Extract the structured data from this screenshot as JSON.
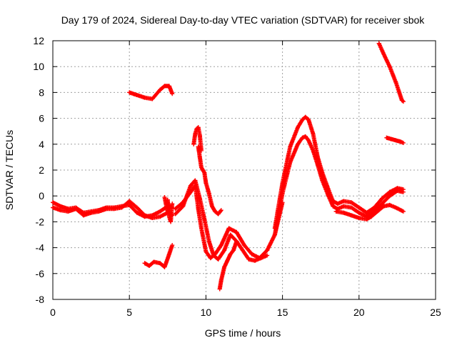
{
  "chart_data": {
    "type": "scatter",
    "title": "Day 179 of 2024, Sidereal Day-to-day VTEC variation (SDTVAR) for receiver sbok",
    "xlabel": "GPS time / hours",
    "ylabel": "SDTVAR / TECUs",
    "xlim": [
      0,
      25
    ],
    "ylim": [
      -8,
      12
    ],
    "xticks": [
      0,
      5,
      10,
      15,
      20,
      25
    ],
    "yticks": [
      -8,
      -6,
      -4,
      -2,
      0,
      2,
      4,
      6,
      8,
      10,
      12
    ],
    "grid": true,
    "marker": "+",
    "series_color": "#ff0000",
    "series": [
      {
        "name": "track-main-1",
        "x": [
          0.0,
          0.5,
          1.0,
          1.5,
          2.0,
          2.5,
          3.0,
          3.5,
          4.0,
          4.5,
          5.0,
          5.5,
          6.0,
          6.5,
          7.0,
          7.5,
          7.8
        ],
        "y": [
          -0.5,
          -0.8,
          -1.0,
          -0.9,
          -1.3,
          -1.2,
          -1.1,
          -0.9,
          -0.9,
          -0.8,
          -0.7,
          -1.3,
          -1.6,
          -1.5,
          -1.2,
          -0.8,
          -0.9
        ]
      },
      {
        "name": "track-main-2",
        "x": [
          0.0,
          0.5,
          1.0,
          1.5,
          2.0,
          2.5,
          3.0,
          3.5,
          4.0,
          4.5,
          5.0,
          5.5,
          6.0,
          6.5,
          7.0,
          7.5,
          7.8
        ],
        "y": [
          -0.9,
          -1.1,
          -1.2,
          -1.0,
          -1.5,
          -1.3,
          -1.2,
          -1.0,
          -1.0,
          -0.9,
          -0.4,
          -0.9,
          -1.5,
          -1.7,
          -1.6,
          -1.3,
          -1.5
        ]
      },
      {
        "name": "track-upper-left",
        "x": [
          5.0,
          5.5,
          6.0,
          6.5,
          7.0,
          7.3,
          7.6,
          7.8
        ],
        "y": [
          8.0,
          7.8,
          7.6,
          7.5,
          8.2,
          8.5,
          8.5,
          7.9
        ]
      },
      {
        "name": "track-lower-left",
        "x": [
          6.0,
          6.3,
          6.6,
          7.0,
          7.3,
          7.6,
          7.8
        ],
        "y": [
          -5.2,
          -5.4,
          -5.1,
          -5.2,
          -5.5,
          -4.5,
          -3.8
        ]
      },
      {
        "name": "track-left-vertical",
        "x": [
          7.3,
          7.4,
          7.5,
          7.5,
          7.6,
          7.7,
          7.8
        ],
        "y": [
          -0.1,
          -0.7,
          -1.2,
          -0.3,
          -1.6,
          -2.0,
          -0.6
        ]
      },
      {
        "name": "track-mid-1",
        "x": [
          8.0,
          8.5,
          9.0,
          9.3,
          9.5,
          9.7,
          10.0,
          10.3,
          10.6,
          11.0,
          11.5,
          12.0,
          12.5,
          13.0,
          13.5,
          14.0,
          14.5,
          15.0
        ],
        "y": [
          -1.0,
          -0.5,
          0.3,
          0.8,
          -1.0,
          -2.5,
          -4.3,
          -4.8,
          -4.5,
          -3.8,
          -2.5,
          -2.8,
          -3.8,
          -4.5,
          -4.8,
          -4.2,
          -3.0,
          -0.5
        ]
      },
      {
        "name": "track-mid-2",
        "x": [
          8.0,
          8.5,
          9.0,
          9.3,
          9.6,
          9.9,
          10.2,
          10.5,
          10.8,
          11.2,
          11.6,
          12.0,
          12.4,
          12.8,
          13.2,
          13.6,
          14.0
        ],
        "y": [
          -1.4,
          -0.8,
          0.8,
          1.2,
          -0.2,
          -1.8,
          -3.5,
          -4.6,
          -4.9,
          -4.2,
          -3.0,
          -3.5,
          -4.2,
          -4.9,
          -5.0,
          -4.8,
          -4.6
        ]
      },
      {
        "name": "track-spike",
        "x": [
          9.2,
          9.3,
          9.4,
          9.5,
          9.6,
          9.7
        ],
        "y": [
          4.0,
          4.8,
          5.2,
          5.3,
          4.7,
          3.5
        ]
      },
      {
        "name": "track-spike-stem",
        "x": [
          9.5,
          9.6,
          9.7,
          9.8,
          9.9,
          10.0,
          10.2,
          10.4,
          10.6,
          10.8,
          11.0
        ],
        "y": [
          3.8,
          3.0,
          2.2,
          2.0,
          1.8,
          1.0,
          0.2,
          -0.8,
          -1.2,
          -1.4,
          -1.1
        ]
      },
      {
        "name": "track-dip",
        "x": [
          10.9,
          11.0,
          11.2,
          11.4,
          11.6,
          11.8,
          12.0
        ],
        "y": [
          -7.2,
          -6.5,
          -5.5,
          -5.0,
          -4.5,
          -4.2,
          -3.5
        ]
      },
      {
        "name": "track-rise-1",
        "x": [
          14.5,
          15.0,
          15.5,
          16.0,
          16.3,
          16.5,
          16.7,
          17.0,
          17.3,
          17.6,
          18.0,
          18.3,
          18.6,
          19.0,
          19.5,
          20.0,
          20.5,
          21.0,
          21.5,
          22.0,
          22.5,
          22.9
        ],
        "y": [
          -2.5,
          1.0,
          3.8,
          5.3,
          5.9,
          6.1,
          5.9,
          4.8,
          3.0,
          1.8,
          0.5,
          -0.4,
          -0.6,
          -0.4,
          -0.5,
          -0.9,
          -1.3,
          -0.9,
          -0.2,
          0.3,
          0.6,
          0.5
        ]
      },
      {
        "name": "track-rise-2",
        "x": [
          14.5,
          15.0,
          15.5,
          16.0,
          16.3,
          16.5,
          16.7,
          17.0,
          17.3,
          17.6,
          18.0,
          18.3,
          18.6,
          19.0,
          19.5,
          20.0,
          20.5,
          21.0,
          21.5,
          22.0,
          22.5,
          22.9
        ],
        "y": [
          -3.0,
          0.2,
          2.6,
          4.0,
          4.5,
          4.6,
          4.3,
          3.5,
          2.4,
          1.2,
          0.0,
          -0.8,
          -1.0,
          -0.8,
          -0.9,
          -1.3,
          -1.6,
          -1.2,
          -0.6,
          0.0,
          0.4,
          0.3
        ]
      },
      {
        "name": "track-lower-right",
        "x": [
          18.5,
          19.0,
          19.5,
          20.0,
          20.5,
          20.8,
          21.2,
          21.6,
          22.0,
          22.4,
          22.9
        ],
        "y": [
          -1.2,
          -1.3,
          -1.5,
          -1.7,
          -1.8,
          -1.6,
          -1.2,
          -0.8,
          -0.7,
          -0.9,
          -1.2
        ]
      },
      {
        "name": "track-upper-right",
        "x": [
          21.3,
          21.6,
          22.0,
          22.4,
          22.8,
          22.9
        ],
        "y": [
          11.8,
          11.0,
          10.0,
          8.8,
          7.4,
          7.3
        ]
      },
      {
        "name": "track-mid-right",
        "x": [
          21.8,
          22.1,
          22.4,
          22.7,
          22.9
        ],
        "y": [
          4.5,
          4.4,
          4.3,
          4.2,
          4.1
        ]
      }
    ]
  }
}
